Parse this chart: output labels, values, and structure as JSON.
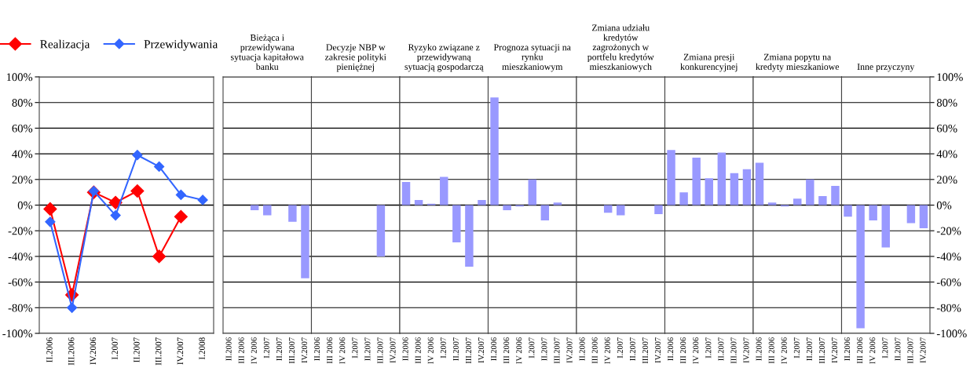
{
  "chart_data": [
    {
      "type": "line",
      "categories": [
        "II.2006",
        "III.2006",
        "IV.2006",
        "I.2007",
        "II.2007",
        "III.2007",
        "IV.2007",
        "I.2008"
      ],
      "series": [
        {
          "name": "Realizacja",
          "color": "#ff0000",
          "values": [
            -3,
            -70,
            10,
            2,
            11,
            -40,
            -9,
            null
          ]
        },
        {
          "name": "Przewidywania",
          "color": "#3366ff",
          "values": [
            -13,
            -80,
            11,
            -8,
            39,
            30,
            8,
            4
          ]
        }
      ],
      "marker": "diamond",
      "line_style": "solid",
      "legend": "top",
      "grid": "y",
      "ylim": [
        -100,
        100
      ],
      "yticks": [
        {
          "value": -100,
          "label": "-100%"
        },
        {
          "value": -80,
          "label": "-80%"
        },
        {
          "value": -60,
          "label": "-60%"
        },
        {
          "value": -40,
          "label": "-40%"
        },
        {
          "value": -20,
          "label": "-20%"
        },
        {
          "value": 0,
          "label": "0%"
        },
        {
          "value": 20,
          "label": "20%"
        },
        {
          "value": 40,
          "label": "40%"
        },
        {
          "value": 60,
          "label": "60%"
        },
        {
          "value": 80,
          "label": "80%"
        },
        {
          "value": 100,
          "label": "100%"
        }
      ]
    },
    {
      "type": "bar",
      "title": "Bieżąca i przewidywana sytuacja kapitałowa banku",
      "categories": [
        "II.2006",
        "III 2006",
        "IV 2006",
        "I.2007",
        "II.2007",
        "III.2007",
        "IV.2007"
      ],
      "series": [
        {
          "color": "#9999ff",
          "values": [
            null,
            null,
            -4,
            -8,
            null,
            -13,
            -57
          ]
        }
      ],
      "grid": "y",
      "tick_labels": "x",
      "ylim": [
        -100,
        100
      ],
      "yticks": [
        -100,
        -80,
        -60,
        -40,
        -20,
        0,
        20,
        40,
        60,
        80,
        100
      ]
    },
    {
      "type": "bar",
      "title": "Decyzje NBP w zakresie polityki pieniężnej",
      "categories": [
        "II.2006",
        "III 2006",
        "IV 2006",
        "I.2007",
        "II.2007",
        "III.2007",
        "IV.2007"
      ],
      "series": [
        {
          "color": "#9999ff",
          "values": [
            null,
            null,
            null,
            null,
            null,
            -40,
            null
          ]
        }
      ],
      "grid": "y",
      "tick_labels": "x",
      "ylim": [
        -100,
        100
      ],
      "yticks": [
        -100,
        -80,
        -60,
        -40,
        -20,
        0,
        20,
        40,
        60,
        80,
        100
      ]
    },
    {
      "type": "bar",
      "title": "Ryzyko związane z przewidywaną sytuacją gospodarczą",
      "categories": [
        "II.2006",
        "III 2006",
        "IV 2006",
        "I.2007",
        "II.2007",
        "III.2007",
        "IV.2007"
      ],
      "series": [
        {
          "color": "#9999ff",
          "values": [
            18,
            4,
            1,
            22,
            -29,
            -48,
            4
          ]
        }
      ],
      "grid": "y",
      "tick_labels": "x",
      "ylim": [
        -100,
        100
      ],
      "yticks": [
        -100,
        -80,
        -60,
        -40,
        -20,
        0,
        20,
        40,
        60,
        80,
        100
      ]
    },
    {
      "type": "bar",
      "title": "Prognoza sytuacji na rynku mieszkaniowym",
      "categories": [
        "II.2006",
        "III 2006",
        "IV 2006",
        "I.2007",
        "II.2007",
        "III.2007",
        "IV.2007"
      ],
      "series": [
        {
          "color": "#9999ff",
          "values": [
            84,
            -4,
            -1,
            20,
            -12,
            2,
            null
          ]
        }
      ],
      "grid": "y",
      "tick_labels": "x",
      "ylim": [
        -100,
        100
      ],
      "yticks": [
        -100,
        -80,
        -60,
        -40,
        -20,
        0,
        20,
        40,
        60,
        80,
        100
      ]
    },
    {
      "type": "bar",
      "title": "Zmiana udziału kredytów zagrożonych w portfelu kredytów mieszkaniowych",
      "categories": [
        "II.2006",
        "III 2006",
        "IV 2006",
        "I.2007",
        "II.2007",
        "III.2007",
        "IV.2007"
      ],
      "series": [
        {
          "color": "#9999ff",
          "values": [
            null,
            null,
            -6,
            -8,
            null,
            null,
            -7
          ]
        }
      ],
      "grid": "y",
      "tick_labels": "x",
      "ylim": [
        -100,
        100
      ],
      "yticks": [
        -100,
        -80,
        -60,
        -40,
        -20,
        0,
        20,
        40,
        60,
        80,
        100
      ]
    },
    {
      "type": "bar",
      "title": "Zmiana presji konkurencyjnej",
      "categories": [
        "II.2006",
        "III 2006",
        "IV 2006",
        "I.2007",
        "II.2007",
        "III.2007",
        "IV.2007"
      ],
      "series": [
        {
          "color": "#9999ff",
          "values": [
            43,
            10,
            37,
            21,
            41,
            25,
            28
          ]
        }
      ],
      "grid": "y",
      "tick_labels": "x",
      "ylim": [
        -100,
        100
      ],
      "yticks": [
        -100,
        -80,
        -60,
        -40,
        -20,
        0,
        20,
        40,
        60,
        80,
        100
      ]
    },
    {
      "type": "bar",
      "title": "Zmiana popytu na kredyty mieszkaniowe",
      "categories": [
        "II.2006",
        "III 2006",
        "IV 2006",
        "I.2007",
        "II.2007",
        "III.2007",
        "IV.2007"
      ],
      "series": [
        {
          "color": "#9999ff",
          "values": [
            33,
            2,
            -1,
            5,
            20,
            7,
            15
          ]
        }
      ],
      "grid": "y",
      "tick_labels": "x",
      "ylim": [
        -100,
        100
      ],
      "yticks": [
        -100,
        -80,
        -60,
        -40,
        -20,
        0,
        20,
        40,
        60,
        80,
        100
      ]
    },
    {
      "type": "bar",
      "title": "Inne przyczyny",
      "categories": [
        "II.2006",
        "III 2006",
        "IV 2006",
        "I.2007",
        "II.2007",
        "III.2007",
        "IV.2007"
      ],
      "series": [
        {
          "color": "#9999ff",
          "values": [
            -9,
            -96,
            -12,
            -33,
            null,
            -14,
            -18
          ],
          "axis": "y2"
        }
      ],
      "grid": "y",
      "y2lim": [
        -100,
        100
      ],
      "y2ticks": [
        {
          "value": -100,
          "label": "-100%"
        },
        {
          "value": -80,
          "label": "-80%"
        },
        {
          "value": -60,
          "label": "-60%"
        },
        {
          "value": -40,
          "label": "-40%"
        },
        {
          "value": -20,
          "label": "-20%"
        },
        {
          "value": 0,
          "label": "0%"
        },
        {
          "value": 20,
          "label": "20%"
        },
        {
          "value": 40,
          "label": "40%"
        },
        {
          "value": 60,
          "label": "60%"
        },
        {
          "value": 80,
          "label": "80%"
        },
        {
          "value": 100,
          "label": "100%"
        }
      ]
    }
  ]
}
